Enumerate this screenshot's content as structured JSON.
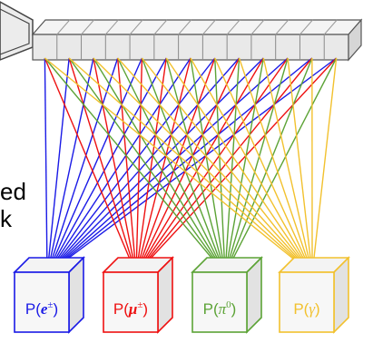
{
  "side_text": {
    "line1": "ed",
    "line2": "k"
  },
  "layer_cells": 13,
  "outputs": [
    {
      "prefix": "P(",
      "symbol": "e",
      "superscript": "±",
      "suffix": ")",
      "color": "#1a1ae6"
    },
    {
      "prefix": "P(",
      "symbol": "μ",
      "superscript": "±",
      "suffix": ")",
      "color": "#ee1111"
    },
    {
      "prefix": "P(",
      "symbol": "π",
      "superscript": "0",
      "suffix": ")",
      "color": "#5ca336"
    },
    {
      "prefix": "P(",
      "symbol": "γ",
      "superscript": "",
      "suffix": ")",
      "color": "#f2c12e"
    }
  ]
}
